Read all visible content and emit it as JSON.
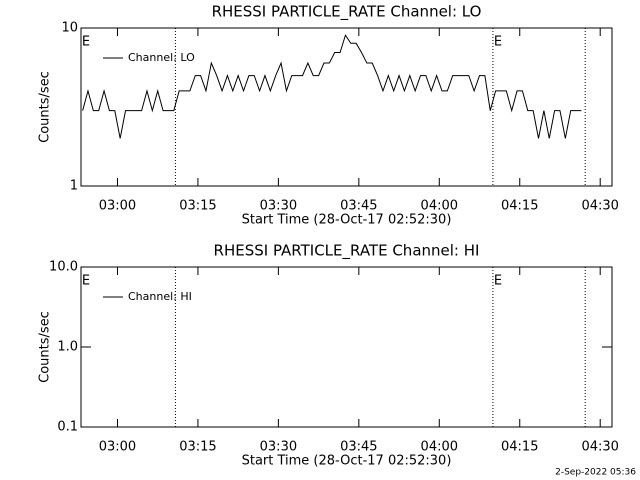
{
  "chart_data": [
    {
      "type": "line",
      "title": "RHESSI PARTICLE_RATE Channel: LO",
      "x_label": "Start Time (28-Oct-17 02:52:30)",
      "y_label": "Counts/sec",
      "log_y": true,
      "xlim": [
        0.7,
        99.7
      ],
      "ylim": [
        1,
        10
      ],
      "yticks": [
        1,
        10
      ],
      "xticks": [
        {
          "value": 7.5,
          "label": "03:00"
        },
        {
          "value": 22.5,
          "label": "03:15"
        },
        {
          "value": 37.5,
          "label": "03:30"
        },
        {
          "value": 52.5,
          "label": "03:45"
        },
        {
          "value": 67.5,
          "label": "04:00"
        },
        {
          "value": 82.5,
          "label": "04:15"
        },
        {
          "value": 97.5,
          "label": "04:30"
        }
      ],
      "vlines": [
        18.3,
        77.5,
        94.7
      ],
      "annotations": [
        "E",
        "E"
      ],
      "series": [
        {
          "name": "Channel: LO",
          "color": "#000000",
          "x": [
            1,
            2,
            3,
            4,
            5,
            6,
            7,
            8,
            9,
            10,
            11,
            12,
            13,
            14,
            15,
            16,
            17,
            18,
            19,
            20,
            21,
            22,
            23,
            24,
            25,
            26,
            27,
            28,
            29,
            30,
            31,
            32,
            33,
            34,
            35,
            36,
            37,
            38,
            39,
            40,
            41,
            42,
            43,
            44,
            45,
            46,
            47,
            48,
            49,
            50,
            51,
            52,
            53,
            54,
            55,
            56,
            57,
            58,
            59,
            60,
            61,
            62,
            63,
            64,
            65,
            66,
            67,
            68,
            69,
            70,
            71,
            72,
            73,
            74,
            75,
            76,
            77,
            78,
            79,
            80,
            81,
            82,
            83,
            84,
            85,
            86,
            87,
            88,
            89,
            90,
            91,
            92,
            93,
            94
          ],
          "values": [
            3,
            4,
            3,
            3,
            4,
            3,
            3,
            2,
            3,
            3,
            3,
            3,
            4,
            3,
            4,
            3,
            3,
            3,
            4,
            4,
            4,
            5,
            5,
            4,
            6,
            5,
            4,
            5,
            4,
            5,
            4,
            5,
            5,
            4,
            5,
            4,
            5,
            6,
            4,
            5,
            5,
            5,
            6,
            5,
            5,
            6,
            6,
            7,
            7,
            9,
            8,
            8,
            7,
            6,
            6,
            5,
            4,
            5,
            4,
            5,
            4,
            5,
            4,
            5,
            5,
            4,
            5,
            4,
            4,
            5,
            5,
            5,
            5,
            4,
            5,
            5,
            3,
            4,
            4,
            4,
            3,
            4,
            4,
            3,
            3,
            2,
            3,
            2,
            3,
            3,
            2,
            3,
            3,
            3
          ]
        }
      ]
    },
    {
      "type": "line",
      "title": "RHESSI PARTICLE_RATE Channel: HI",
      "x_label": "Start Time (28-Oct-17 02:52:30)",
      "y_label": "Counts/sec",
      "log_y": true,
      "xlim": [
        0.7,
        99.7
      ],
      "ylim": [
        0.1,
        10
      ],
      "yticks": [
        0.1,
        {
          "value": 1,
          "label": "1.0"
        },
        {
          "value": 10,
          "label": "10.0"
        }
      ],
      "xticks": [
        {
          "value": 7.5,
          "label": "03:00"
        },
        {
          "value": 22.5,
          "label": "03:15"
        },
        {
          "value": 37.5,
          "label": "03:30"
        },
        {
          "value": 52.5,
          "label": "03:45"
        },
        {
          "value": 67.5,
          "label": "04:00"
        },
        {
          "value": 82.5,
          "label": "04:15"
        },
        {
          "value": 97.5,
          "label": "04:30"
        }
      ],
      "vlines": [
        18.3,
        77.5,
        94.7
      ],
      "annotations": [
        "E",
        "E"
      ],
      "series": [
        {
          "name": "Channel: HI",
          "color": "#000000",
          "x": [],
          "values": []
        }
      ]
    }
  ],
  "footer": "2-Sep-2022 05:36"
}
